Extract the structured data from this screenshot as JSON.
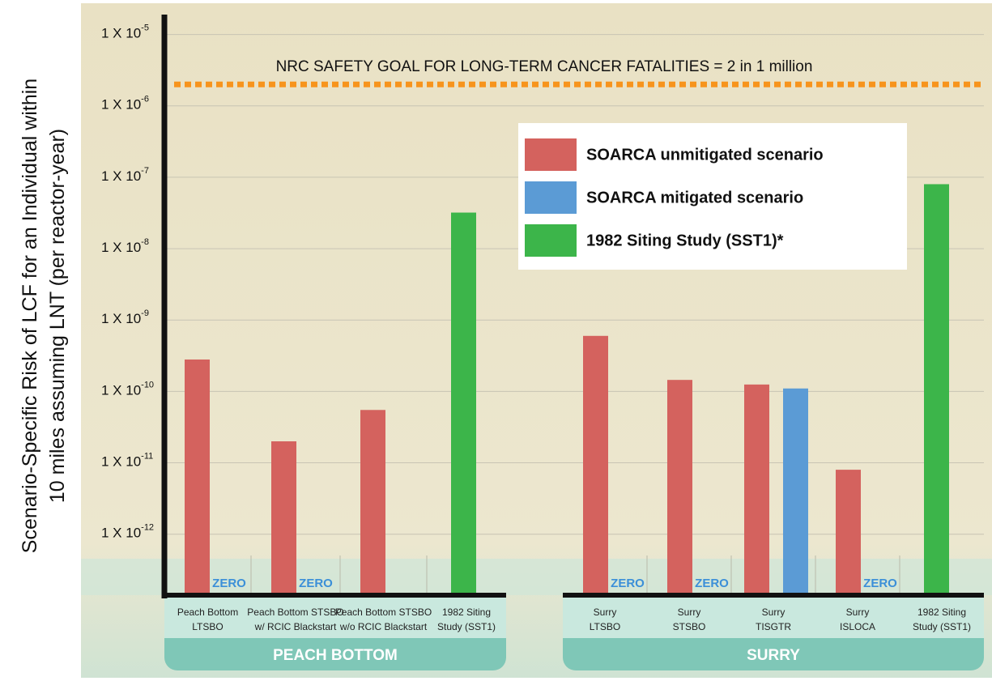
{
  "chart_data": {
    "type": "bar",
    "y_label": [
      "Scenario-Specific Risk of LCF for an Individual within",
      "10 miles assuming LNT (per reactor-year)"
    ],
    "log_scale": true,
    "grid": true,
    "legend": "upper right",
    "group_labels": [
      "PEACH BOTTOM",
      "SURRY"
    ],
    "categories": [
      [
        "Peach Bottom",
        "LTSBO"
      ],
      [
        "Peach Bottom STSBO",
        "w/ RCIC Blackstart"
      ],
      [
        "Peach Bottom STSBO",
        "w/o RCIC Blackstart"
      ],
      [
        "1982 Siting",
        "Study (SST1)"
      ],
      [
        "Surry",
        "LTSBO"
      ],
      [
        "Surry",
        "STSBO"
      ],
      [
        "Surry",
        "TISGTR"
      ],
      [
        "Surry",
        "ISLOCA"
      ],
      [
        "1982 Siting",
        "Study (SST1)"
      ]
    ],
    "series": [
      {
        "name": "SOARCA unmitigated scenario",
        "color": "#d4625e",
        "values": [
          2.8e-10,
          2e-11,
          5.5e-11,
          null,
          6e-10,
          1.45e-10,
          1.25e-10,
          8e-12,
          null
        ]
      },
      {
        "name": "SOARCA mitigated scenario",
        "color": "#5b9bd5",
        "values": [
          null,
          null,
          null,
          null,
          null,
          null,
          1.1e-10,
          null,
          null
        ],
        "value_labels": [
          "ZERO",
          "ZERO",
          null,
          null,
          "ZERO",
          "ZERO",
          null,
          "ZERO",
          null
        ]
      },
      {
        "name": "1982 Siting Study (SST1)*",
        "color": "#3cb54a",
        "values": [
          null,
          null,
          null,
          3.2e-08,
          null,
          null,
          null,
          null,
          8e-08
        ]
      }
    ],
    "ylim": [
      1.4e-13,
      1.9e-05
    ],
    "yticks": [
      {
        "value": 1e-05,
        "label": "1 X 10",
        "exponent": "-5"
      },
      {
        "value": 1e-06,
        "label": "1 X 10",
        "exponent": "-6"
      },
      {
        "value": 1e-07,
        "label": "1 X 10",
        "exponent": "-7"
      },
      {
        "value": 1e-08,
        "label": "1 X 10",
        "exponent": "-8"
      },
      {
        "value": 1e-09,
        "label": "1 X 10",
        "exponent": "-9"
      },
      {
        "value": 1e-10,
        "label": "1 X 10",
        "exponent": "-10"
      },
      {
        "value": 1e-11,
        "label": "1 X 10",
        "exponent": "-11"
      },
      {
        "value": 1e-12,
        "label": "1 X 10",
        "exponent": "-12"
      }
    ],
    "reference_lines": [
      {
        "value": 2e-06,
        "label": "NRC SAFETY GOAL FOR LONG-TERM CANCER FATALITIES = 2 in 1 million",
        "color": "#f7941d"
      }
    ]
  }
}
